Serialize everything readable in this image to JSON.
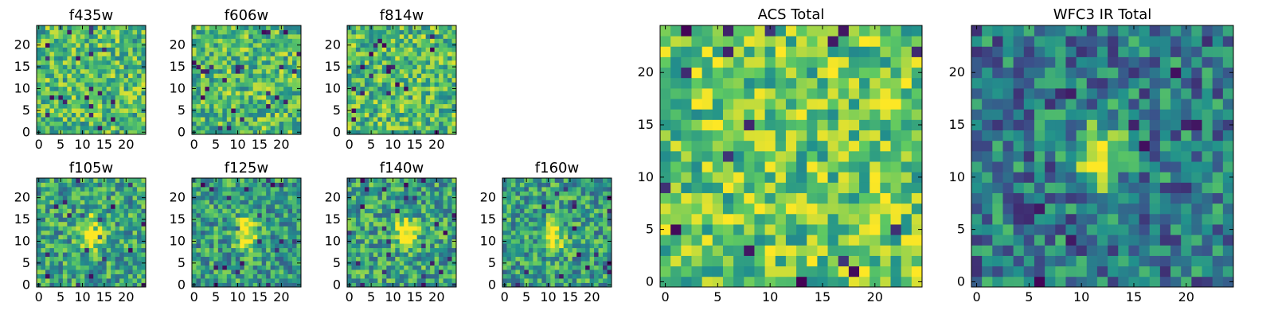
{
  "figure": {
    "width": 1600,
    "height": 400,
    "background": "#ffffff"
  },
  "colormap": [
    "#440154",
    "#3b528b",
    "#21918c",
    "#5ec962",
    "#fde725"
  ],
  "chart_data": [
    {
      "type": "heatmap",
      "title": "f435w",
      "pixels": 25,
      "xticks": [
        0,
        5,
        10,
        15,
        20
      ],
      "yticks": [
        0,
        5,
        10,
        15,
        20
      ],
      "pattern": "noise",
      "seed": 11,
      "bias": 0.68
    },
    {
      "type": "heatmap",
      "title": "f606w",
      "pixels": 25,
      "xticks": [
        0,
        5,
        10,
        15,
        20
      ],
      "yticks": [
        0,
        5,
        10,
        15,
        20
      ],
      "pattern": "noise",
      "seed": 23,
      "bias": 0.68
    },
    {
      "type": "heatmap",
      "title": "f814w",
      "pixels": 25,
      "xticks": [
        0,
        5,
        10,
        15,
        20
      ],
      "yticks": [
        0,
        5,
        10,
        15,
        20
      ],
      "pattern": "noise",
      "seed": 37,
      "bias": 0.68
    },
    {
      "type": "heatmap",
      "title": "f105w",
      "pixels": 25,
      "xticks": [
        0,
        5,
        10,
        15,
        20
      ],
      "yticks": [
        0,
        5,
        10,
        15,
        20
      ],
      "pattern": "source",
      "seed": 41,
      "bias": 0.58,
      "source_center": [
        12,
        12
      ]
    },
    {
      "type": "heatmap",
      "title": "f125w",
      "pixels": 25,
      "xticks": [
        0,
        5,
        10,
        15,
        20
      ],
      "yticks": [
        0,
        5,
        10,
        15,
        20
      ],
      "pattern": "source",
      "seed": 53,
      "bias": 0.56,
      "source_center": [
        12,
        12
      ]
    },
    {
      "type": "heatmap",
      "title": "f140w",
      "pixels": 25,
      "xticks": [
        0,
        5,
        10,
        15,
        20
      ],
      "yticks": [
        0,
        5,
        10,
        15,
        20
      ],
      "pattern": "source",
      "seed": 67,
      "bias": 0.58,
      "source_center": [
        13,
        12
      ]
    },
    {
      "type": "heatmap",
      "title": "f160w",
      "pixels": 25,
      "xticks": [
        0,
        5,
        10,
        15,
        20
      ],
      "yticks": [
        0,
        5,
        10,
        15,
        20
      ],
      "pattern": "source",
      "seed": 79,
      "bias": 0.56,
      "source_center": [
        11,
        11
      ]
    },
    {
      "type": "heatmap",
      "title": "ACS Total",
      "pixels": 25,
      "xticks": [
        0,
        5,
        10,
        15,
        20
      ],
      "yticks": [
        0,
        5,
        10,
        15,
        20
      ],
      "pattern": "noise",
      "seed": 97,
      "bias": 0.74
    },
    {
      "type": "heatmap",
      "title": "WFC3 IR Total",
      "pixels": 25,
      "xticks": [
        0,
        5,
        10,
        15,
        20
      ],
      "yticks": [
        0,
        5,
        10,
        15,
        20
      ],
      "pattern": "source",
      "seed": 101,
      "bias": 0.42,
      "source_center": [
        12,
        12
      ]
    }
  ]
}
